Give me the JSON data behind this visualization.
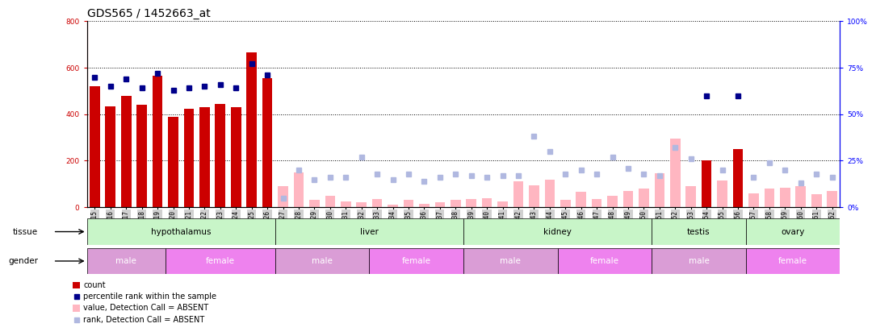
{
  "title": "GDS565 / 1452663_at",
  "samples": [
    "GSM19215",
    "GSM19216",
    "GSM19217",
    "GSM19218",
    "GSM19219",
    "GSM19220",
    "GSM19221",
    "GSM19222",
    "GSM19223",
    "GSM19224",
    "GSM19225",
    "GSM19226",
    "GSM19227",
    "GSM19228",
    "GSM19229",
    "GSM19230",
    "GSM19231",
    "GSM19232",
    "GSM19233",
    "GSM19234",
    "GSM19235",
    "GSM19236",
    "GSM19237",
    "GSM19238",
    "GSM19239",
    "GSM19240",
    "GSM19241",
    "GSM19242",
    "GSM19243",
    "GSM19244",
    "GSM19245",
    "GSM19246",
    "GSM19247",
    "GSM19248",
    "GSM19249",
    "GSM19250",
    "GSM19251",
    "GSM19252",
    "GSM19253",
    "GSM19254",
    "GSM19255",
    "GSM19256",
    "GSM19257",
    "GSM19258",
    "GSM19259",
    "GSM19260",
    "GSM19261",
    "GSM19262"
  ],
  "count_present": [
    520,
    435,
    480,
    440,
    565,
    390,
    425,
    430,
    445,
    430,
    665,
    555,
    null,
    null,
    null,
    null,
    null,
    null,
    null,
    null,
    null,
    null,
    null,
    null,
    null,
    null,
    null,
    null,
    null,
    null,
    null,
    null,
    null,
    null,
    null,
    null,
    null,
    null,
    null,
    200,
    null,
    250,
    null,
    null,
    null,
    null,
    null,
    null
  ],
  "count_absent": [
    null,
    null,
    null,
    null,
    null,
    null,
    null,
    null,
    null,
    null,
    null,
    null,
    90,
    150,
    30,
    50,
    25,
    20,
    35,
    10,
    30,
    15,
    20,
    30,
    35,
    40,
    25,
    110,
    95,
    120,
    30,
    65,
    35,
    50,
    70,
    80,
    145,
    295,
    90,
    null,
    115,
    null,
    60,
    80,
    85,
    90,
    55,
    70
  ],
  "percentile_present": [
    70,
    65,
    69,
    64,
    72,
    63,
    64,
    65,
    66,
    64,
    77,
    71,
    null,
    null,
    null,
    null,
    null,
    null,
    null,
    null,
    null,
    null,
    null,
    null,
    null,
    null,
    null,
    null,
    null,
    null,
    null,
    null,
    null,
    null,
    null,
    null,
    null,
    null,
    null,
    60,
    null,
    60,
    null,
    null,
    null,
    null,
    null,
    null
  ],
  "rank_absent": [
    null,
    null,
    null,
    null,
    null,
    null,
    null,
    null,
    null,
    null,
    null,
    null,
    5,
    20,
    15,
    16,
    16,
    27,
    18,
    15,
    18,
    14,
    16,
    18,
    17,
    16,
    17,
    17,
    38,
    30,
    18,
    20,
    18,
    27,
    21,
    18,
    17,
    32,
    26,
    null,
    20,
    null,
    16,
    24,
    20,
    13,
    18,
    16
  ],
  "rank_absent_2": [
    null,
    null,
    null,
    null,
    null,
    null,
    null,
    null,
    null,
    null,
    null,
    null,
    null,
    null,
    null,
    null,
    null,
    null,
    null,
    null,
    null,
    null,
    null,
    null,
    null,
    null,
    null,
    null,
    null,
    null,
    null,
    null,
    null,
    null,
    null,
    null,
    null,
    null,
    null,
    null,
    null,
    null,
    null,
    null,
    null,
    null,
    null,
    null
  ],
  "tissue_groups": [
    {
      "label": "hypothalamus",
      "start": 0,
      "end": 11
    },
    {
      "label": "liver",
      "start": 12,
      "end": 23
    },
    {
      "label": "kidney",
      "start": 24,
      "end": 35
    },
    {
      "label": "testis",
      "start": 36,
      "end": 41
    },
    {
      "label": "ovary",
      "start": 42,
      "end": 47
    }
  ],
  "gender_groups": [
    {
      "label": "male",
      "start": 0,
      "end": 4,
      "color": "#da9dd6"
    },
    {
      "label": "female",
      "start": 5,
      "end": 11,
      "color": "#ee82ee"
    },
    {
      "label": "male",
      "start": 12,
      "end": 17,
      "color": "#da9dd6"
    },
    {
      "label": "female",
      "start": 18,
      "end": 23,
      "color": "#ee82ee"
    },
    {
      "label": "male",
      "start": 24,
      "end": 29,
      "color": "#da9dd6"
    },
    {
      "label": "female",
      "start": 30,
      "end": 35,
      "color": "#ee82ee"
    },
    {
      "label": "male",
      "start": 36,
      "end": 41,
      "color": "#da9dd6"
    },
    {
      "label": "female",
      "start": 42,
      "end": 47,
      "color": "#ee82ee"
    }
  ],
  "ylim_left": [
    0,
    800
  ],
  "ylim_right": [
    0,
    100
  ],
  "left_yticks": [
    0,
    200,
    400,
    600,
    800
  ],
  "right_yticks": [
    0,
    25,
    50,
    75,
    100
  ],
  "bar_color_present": "#cc0000",
  "bar_color_absent": "#ffb6c1",
  "dot_color_present": "#00008b",
  "dot_color_absent": "#b0b8e0",
  "tissue_color": "#b2f0b2",
  "tissue_color_dark": "#55cc55",
  "title_fontsize": 10,
  "tick_fontsize": 5.5,
  "label_fontsize": 7.5
}
